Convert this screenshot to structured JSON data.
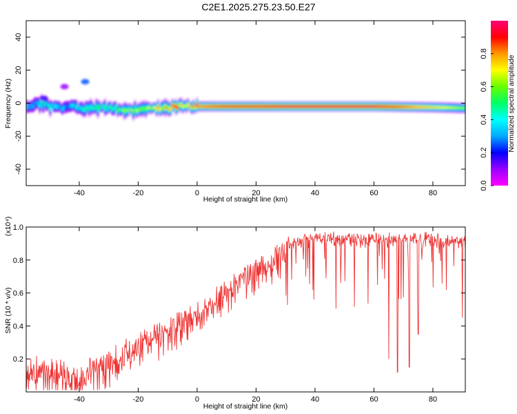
{
  "title": "C2E1.2025.275.23.50.E27",
  "chart_data": [
    {
      "type": "heatmap",
      "name": "spectrogram",
      "xlabel": "Height of straight line (km)",
      "ylabel": "Frequency (Hz)",
      "xlim": [
        -58,
        91
      ],
      "ylim": [
        -50,
        50
      ],
      "xticks": [
        -40,
        -20,
        0,
        20,
        40,
        60,
        80
      ],
      "yticks": [
        -40,
        -20,
        0,
        20,
        40
      ],
      "colorbar": {
        "label": "Normalized spectral amplitude",
        "range": [
          0,
          1
        ],
        "ticks": [
          0.0,
          0.2,
          0.4,
          0.6,
          0.8
        ],
        "colormap": [
          "#ff00ff",
          "#9900ff",
          "#0000ff",
          "#00aaff",
          "#00ffff",
          "#00ff66",
          "#66ff00",
          "#ffff00",
          "#ff9900",
          "#ff0000",
          "#ff0077"
        ]
      },
      "ridge": {
        "x": [
          -58,
          -55,
          -52,
          -48,
          -45,
          -40,
          -35,
          -30,
          -25,
          -20,
          -15,
          -10,
          -5,
          0,
          5,
          10,
          20,
          30,
          40,
          60,
          80,
          91
        ],
        "frequency_hz": [
          -2,
          0,
          -1,
          -3,
          -2,
          -3,
          -3,
          -3,
          -4,
          -4,
          -3.5,
          -3,
          -2,
          -2,
          -2,
          -2,
          -2,
          -2,
          -2,
          -2,
          -2.5,
          -3
        ],
        "amplitude": [
          0.4,
          0.35,
          0.45,
          0.35,
          0.3,
          0.45,
          0.5,
          0.5,
          0.55,
          0.7,
          0.7,
          0.75,
          0.8,
          0.85,
          0.9,
          0.95,
          0.95,
          1.0,
          1.0,
          1.0,
          0.75,
          0.6
        ]
      },
      "blobs": [
        {
          "x": -38,
          "frequency_hz": 13,
          "amplitude": 0.25
        },
        {
          "x": -45,
          "frequency_hz": 10,
          "amplitude": 0.1
        },
        {
          "x": -52,
          "frequency_hz": 3,
          "amplitude": 0.15
        }
      ]
    },
    {
      "type": "line",
      "name": "snr",
      "xlabel": "Height of straight line (km)",
      "ylabel": "SNR (10 * v/v)",
      "multiplier": "(x10⁴)",
      "xlim": [
        -58,
        91
      ],
      "ylim": [
        0,
        1.0
      ],
      "xticks": [
        -40,
        -20,
        0,
        20,
        40,
        60,
        80
      ],
      "yticks": [
        0.2,
        0.4,
        0.6,
        0.8,
        1.0
      ],
      "color": "#ee3333",
      "envelope": {
        "x": [
          -58,
          -50,
          -40,
          -30,
          -20,
          -15,
          -10,
          -5,
          0,
          5,
          10,
          15,
          20,
          25,
          30,
          35,
          40,
          50,
          60,
          70,
          80,
          91
        ],
        "y": [
          0.2,
          0.2,
          0.15,
          0.25,
          0.35,
          0.4,
          0.45,
          0.5,
          0.55,
          0.6,
          0.7,
          0.75,
          0.8,
          0.87,
          0.92,
          0.95,
          0.95,
          0.95,
          0.95,
          0.95,
          0.95,
          0.93
        ]
      },
      "dips": [
        {
          "x": 65,
          "y": 0.2
        },
        {
          "x": 68,
          "y": 0.12
        },
        {
          "x": 72,
          "y": 0.15
        },
        {
          "x": 75,
          "y": 0.35
        },
        {
          "x": 90,
          "y": 0.45
        }
      ]
    }
  ]
}
